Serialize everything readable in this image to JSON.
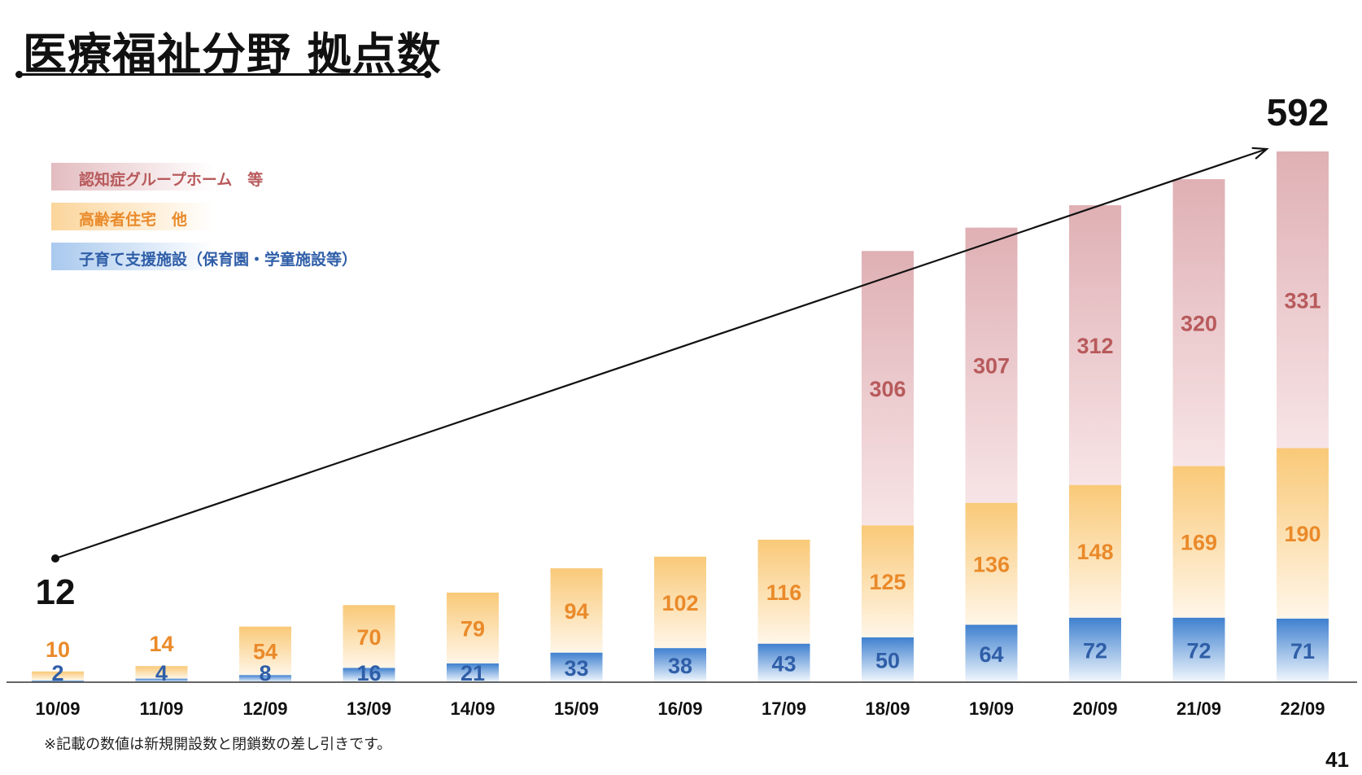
{
  "page": {
    "title": "医療福祉分野 拠点数",
    "footnote": "※記載の数値は新規開設数と閉鎖数の差し引きです。",
    "page_number": "41"
  },
  "chart_data": {
    "type": "bar",
    "stacked": true,
    "title": "",
    "xlabel": "",
    "ylabel": "",
    "ylim": [
      0,
      600
    ],
    "grid": false,
    "legend_position": "top-left",
    "categories": [
      "10/09",
      "11/09",
      "12/09",
      "13/09",
      "14/09",
      "15/09",
      "16/09",
      "17/09",
      "18/09",
      "19/09",
      "20/09",
      "21/09",
      "22/09"
    ],
    "series": [
      {
        "name": "子育て支援施設（保育園・学童施設等）",
        "color": "#3a7bc8",
        "label_color": "#2f5ea8",
        "values": [
          2,
          4,
          8,
          16,
          21,
          33,
          38,
          43,
          50,
          64,
          72,
          72,
          71
        ]
      },
      {
        "name": "高齢者住宅　他",
        "color": "#f5b555",
        "label_color": "#ea8a2a",
        "values": [
          10,
          14,
          54,
          70,
          79,
          94,
          102,
          116,
          125,
          136,
          148,
          169,
          190
        ]
      },
      {
        "name": "認知症グループホーム　等",
        "color": "#d59a9f",
        "label_color": "#b85a5c",
        "values": [
          null,
          null,
          null,
          null,
          null,
          null,
          null,
          null,
          306,
          307,
          312,
          320,
          331
        ]
      }
    ],
    "annotations": [
      {
        "text": "12",
        "category": "10/09",
        "value": 12
      },
      {
        "text": "592",
        "category": "22/09",
        "value": 592
      }
    ],
    "trend_arrow": {
      "from_category": "10/09",
      "from_value": 12,
      "to_category": "22/09",
      "to_value": 592
    }
  }
}
